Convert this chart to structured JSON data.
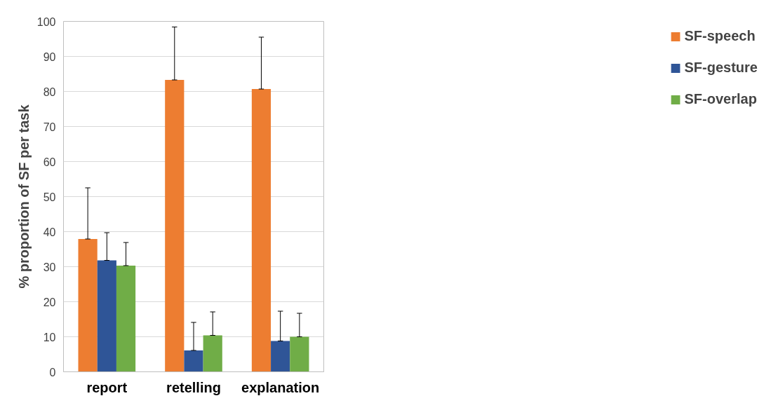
{
  "chart_data": {
    "type": "bar",
    "ylabel": "% proportion of SF per task",
    "categories": [
      "report",
      "retelling",
      "explanation"
    ],
    "series": [
      {
        "name": "SF-speech",
        "color": "#ed7d31",
        "values": [
          37.9,
          83.3,
          80.7
        ],
        "errors": [
          [
            37.9,
            52.5
          ],
          [
            83.3,
            98.4
          ],
          [
            80.7,
            95.5
          ]
        ]
      },
      {
        "name": "SF-gesture",
        "color": "#2f5597",
        "values": [
          31.8,
          6.1,
          8.8
        ],
        "errors": [
          [
            31.8,
            39.7
          ],
          [
            6.1,
            14.1
          ],
          [
            8.8,
            17.3
          ]
        ]
      },
      {
        "name": "SF-overlap",
        "color": "#70ad47",
        "values": [
          30.3,
          10.4,
          10.0
        ],
        "errors": [
          [
            30.3,
            36.9
          ],
          [
            10.4,
            17.1
          ],
          [
            10.0,
            16.7
          ]
        ]
      }
    ],
    "ylim": [
      0,
      100
    ],
    "yticks": [
      0,
      10,
      20,
      30,
      40,
      50,
      60,
      70,
      80,
      90,
      100
    ],
    "grid": "y",
    "legend": "right"
  }
}
